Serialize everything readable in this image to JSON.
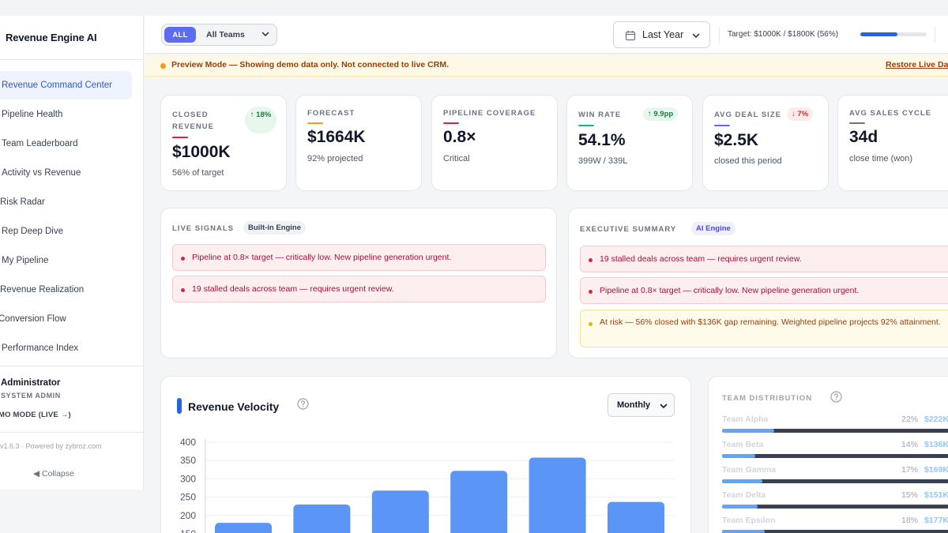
{
  "app": {
    "title": "Revenue Engine AI"
  },
  "sidebar": {
    "items": [
      {
        "label": "Revenue Command Center",
        "active": true
      },
      {
        "label": "Pipeline Health"
      },
      {
        "label": "Team Leaderboard"
      },
      {
        "label": "Activity vs Revenue"
      },
      {
        "label": "Risk Radar"
      },
      {
        "label": "Rep Deep Dive"
      },
      {
        "label": "My Pipeline"
      },
      {
        "label": "Revenue Realization"
      },
      {
        "label": "Conversion Flow"
      },
      {
        "label": "Performance Index"
      }
    ],
    "user": {
      "name": "Administrator",
      "role": "SYSTEM ADMIN",
      "mode": "MO MODE (LIVE →)"
    },
    "version": "v1.6.3 · Powered by zybroz.com",
    "collapse_label": "◀ Collapse"
  },
  "header": {
    "scope_all": "ALL",
    "team_select": "All Teams",
    "period": "Last Year",
    "target_text": "Target: $1000K  /  $1800K (56%)",
    "target_progress": 0.56
  },
  "banner": {
    "text": "Preview Mode — Showing demo data only. Not connected to live CRM.",
    "link": "Restore Live Data"
  },
  "kpis": [
    {
      "label": "CLOSED REVENUE",
      "value": "$1000K",
      "sub": "56% of target",
      "badge": "↑ 18%",
      "trend": "up",
      "accent": "#e11d48"
    },
    {
      "label": "FORECAST",
      "value": "$1664K",
      "sub": "92% projected",
      "accent": "#f59e0b"
    },
    {
      "label": "PIPELINE COVERAGE",
      "value": "0.8×",
      "sub": "Critical",
      "accent": "#e11d48"
    },
    {
      "label": "WIN RATE",
      "value": "54.1%",
      "sub": "399W / 339L",
      "badge": "↑ 9.9pp",
      "trend": "up",
      "accent": "#10b981"
    },
    {
      "label": "AVG DEAL SIZE",
      "value": "$2.5K",
      "sub": "closed this period",
      "badge": "↓ 7%",
      "trend": "down",
      "accent": "#6366f1"
    },
    {
      "label": "AVG SALES CYCLE",
      "value": "34d",
      "sub": "close time (won)",
      "accent": "#6b7280"
    }
  ],
  "live_signals": {
    "title": "LIVE SIGNALS",
    "chip": "Built-in Engine",
    "alerts": [
      {
        "text": "Pipeline at 0.8× target — critically low. New pipeline generation urgent.",
        "level": "red"
      },
      {
        "text": "19 stalled deals across team — requires urgent review.",
        "level": "red"
      }
    ]
  },
  "executive_summary": {
    "title": "EXECUTIVE SUMMARY",
    "chip": "AI Engine",
    "alerts": [
      {
        "text": "19 stalled deals across team — requires urgent review.",
        "level": "red"
      },
      {
        "text": "Pipeline at 0.8× target — critically low. New pipeline generation urgent.",
        "level": "red"
      },
      {
        "text": "At risk — 56% closed with $136K gap remaining. Weighted pipeline projects 92% attainment.",
        "level": "amber"
      }
    ]
  },
  "velocity": {
    "title": "Revenue Velocity",
    "granularity": "Monthly"
  },
  "chart_data": {
    "type": "bar",
    "title": "Revenue Velocity",
    "values": [
      180,
      230,
      268,
      322,
      358,
      237
    ],
    "yticks": [
      150,
      200,
      250,
      300,
      350,
      400
    ],
    "ylim": [
      140,
      400
    ],
    "grid": true,
    "color": "#5b95f5"
  },
  "team_distribution": {
    "title": "TEAM DISTRIBUTION",
    "rows": [
      {
        "name": "Team Alpha",
        "pct": "22%",
        "amount": "$222K",
        "share": 0.22
      },
      {
        "name": "Team Beta",
        "pct": "14%",
        "amount": "$136K",
        "share": 0.14
      },
      {
        "name": "Team Gamma",
        "pct": "17%",
        "amount": "$169K",
        "share": 0.17
      },
      {
        "name": "Team Delta",
        "pct": "15%",
        "amount": "$151K",
        "share": 0.15
      },
      {
        "name": "Team Epsilon",
        "pct": "18%",
        "amount": "$177K",
        "share": 0.18
      }
    ]
  }
}
